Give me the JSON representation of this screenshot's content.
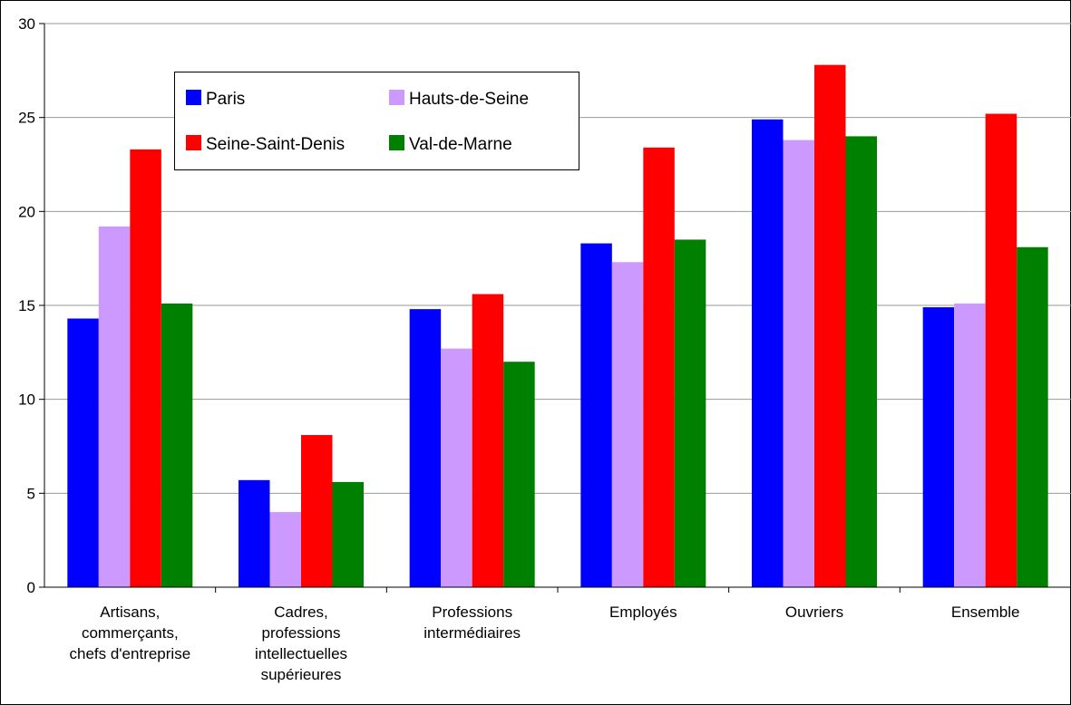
{
  "chart_data": {
    "type": "bar",
    "categories": [
      [
        "Artisans,",
        "commerçants,",
        "chefs d'entreprise"
      ],
      [
        "Cadres,",
        "professions",
        "intellectuelles",
        "supérieures"
      ],
      [
        "Professions",
        "intermédiaires"
      ],
      [
        "Employés"
      ],
      [
        "Ouvriers"
      ],
      [
        "Ensemble"
      ]
    ],
    "series": [
      {
        "name": "Paris",
        "color": "#0000FF",
        "values": [
          14.3,
          5.7,
          14.8,
          18.3,
          24.9,
          14.9
        ]
      },
      {
        "name": "Hauts-de-Seine",
        "color": "#CC99FF",
        "values": [
          19.2,
          4.0,
          12.7,
          17.3,
          23.8,
          15.1
        ]
      },
      {
        "name": "Seine-Saint-Denis",
        "color": "#FF0000",
        "values": [
          23.3,
          8.1,
          15.6,
          23.4,
          27.8,
          25.2
        ]
      },
      {
        "name": "Val-de-Marne",
        "color": "#008000",
        "values": [
          15.1,
          5.6,
          12.0,
          18.5,
          24.0,
          18.1
        ]
      }
    ],
    "ylim": [
      0,
      30
    ],
    "yticks": [
      "0",
      "5",
      "10",
      "15",
      "20",
      "25",
      "30"
    ],
    "grid": true,
    "legend_position": "top-left"
  }
}
